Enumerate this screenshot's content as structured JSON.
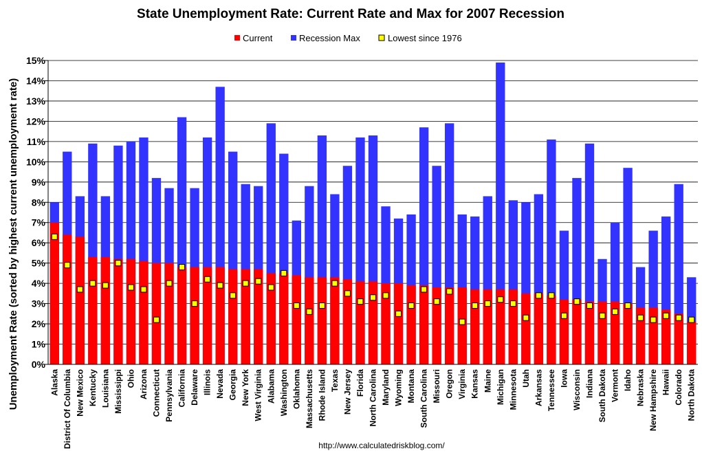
{
  "chart_data": {
    "type": "bar",
    "title": "State Unemployment Rate: Current Rate and Max for 2007 Recession",
    "ylabel": "Unemployment Rate (sorted by highest current unemployment rate)",
    "xlabel": "",
    "source": "http://www.calculatedriskblog.com/",
    "ylim": [
      0,
      15
    ],
    "yticks": [
      0,
      1,
      2,
      3,
      4,
      5,
      6,
      7,
      8,
      9,
      10,
      11,
      12,
      13,
      14,
      15
    ],
    "ytick_labels": [
      "0%",
      "1%",
      "2%",
      "3%",
      "4%",
      "5%",
      "6%",
      "7%",
      "8%",
      "9%",
      "10%",
      "11%",
      "12%",
      "13%",
      "14%",
      "15%"
    ],
    "grid": true,
    "legend_position": "top-center",
    "legend": [
      "Current",
      "Recession Max",
      "Lowest since 1976"
    ],
    "colors": {
      "current": "#ff0000",
      "recession_max": "#3333ff",
      "lowest": "#ffff00",
      "marker_border": "#000000"
    },
    "categories": [
      "Alaska",
      "District Of Columbia",
      "New Mexico",
      "Kentucky",
      "Louisiana",
      "Mississippi",
      "Ohio",
      "Arizona",
      "Connecticut",
      "Pennsylvania",
      "California",
      "Delaware",
      "Illinois",
      "Nevada",
      "Georgia",
      "New York",
      "West Virginia",
      "Alabama",
      "Washington",
      "Oklahoma",
      "Massachusetts",
      "Rhode Island",
      "Texas",
      "New Jersey",
      "Florida",
      "North Carolina",
      "Maryland",
      "Wyoming",
      "Montana",
      "South Carolina",
      "Missouri",
      "Oregon",
      "Virginia",
      "Kansas",
      "Maine",
      "Michigan",
      "Minnesota",
      "Utah",
      "Arkansas",
      "Tennessee",
      "Iowa",
      "Wisconsin",
      "Indiana",
      "South Dakota",
      "Vermont",
      "Idaho",
      "Nebraska",
      "New Hampshire",
      "Hawaii",
      "Colorado",
      "North Dakota"
    ],
    "series": [
      {
        "name": "Current",
        "values": [
          7.0,
          6.4,
          6.3,
          5.3,
          5.3,
          5.2,
          5.2,
          5.1,
          5.0,
          5.0,
          4.8,
          4.8,
          4.8,
          4.8,
          4.7,
          4.7,
          4.7,
          4.5,
          4.5,
          4.4,
          4.3,
          4.3,
          4.3,
          4.2,
          4.1,
          4.1,
          4.0,
          4.0,
          3.9,
          3.9,
          3.8,
          3.8,
          3.8,
          3.7,
          3.7,
          3.7,
          3.7,
          3.5,
          3.5,
          3.4,
          3.2,
          3.2,
          3.1,
          3.1,
          3.1,
          3.0,
          2.8,
          2.8,
          2.7,
          2.5,
          2.1
        ]
      },
      {
        "name": "Recession Max",
        "values": [
          8.0,
          10.5,
          8.3,
          10.9,
          8.3,
          10.8,
          11.0,
          11.2,
          9.2,
          8.7,
          12.2,
          8.7,
          11.2,
          13.7,
          10.5,
          8.9,
          8.8,
          11.9,
          10.4,
          7.1,
          8.8,
          11.3,
          8.4,
          9.8,
          11.2,
          11.3,
          7.8,
          7.2,
          7.4,
          11.7,
          9.8,
          11.9,
          7.4,
          7.3,
          8.3,
          14.9,
          8.1,
          8.0,
          8.4,
          11.1,
          6.6,
          9.2,
          10.9,
          5.2,
          7.0,
          9.7,
          4.8,
          6.6,
          7.3,
          8.9,
          4.3
        ]
      },
      {
        "name": "Lowest since 1976",
        "values": [
          6.3,
          4.9,
          3.7,
          4.0,
          3.9,
          5.0,
          3.8,
          3.7,
          2.2,
          4.0,
          4.8,
          3.0,
          4.2,
          3.9,
          3.4,
          4.0,
          4.1,
          3.8,
          4.5,
          2.9,
          2.6,
          2.9,
          4.0,
          3.5,
          3.1,
          3.3,
          3.4,
          2.5,
          2.9,
          3.7,
          3.1,
          3.6,
          2.1,
          2.9,
          3.0,
          3.2,
          3.0,
          2.3,
          3.4,
          3.4,
          2.4,
          3.1,
          2.9,
          2.4,
          2.6,
          2.9,
          2.3,
          2.2,
          2.4,
          2.3,
          2.2
        ]
      }
    ]
  }
}
